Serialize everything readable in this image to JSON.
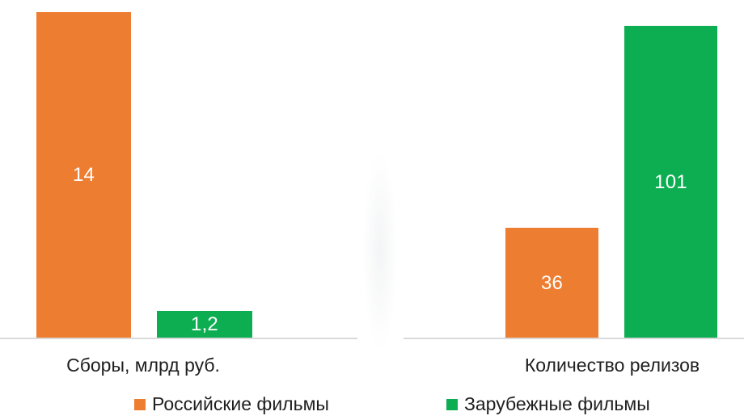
{
  "chart_data": {
    "type": "bar",
    "title": "",
    "categories": [
      "Сборы, млрд руб.",
      "Количество релизов"
    ],
    "series": [
      {
        "name": "Российские фильмы",
        "color": "#ED7D31",
        "values": [
          14,
          36
        ],
        "display_values": [
          "14",
          "36"
        ]
      },
      {
        "name": "Зарубежные фильмы",
        "color": "#0DAE51",
        "values": [
          1.2,
          101
        ],
        "display_values": [
          "1,2",
          "101"
        ]
      }
    ],
    "data_labels": "inside-center-white",
    "legend_position": "bottom",
    "gridlines": false,
    "axis_line_color": "#D9D9D9",
    "left_pane_ylim": [
      0,
      14
    ],
    "right_pane_ylim": [
      0,
      101
    ]
  }
}
